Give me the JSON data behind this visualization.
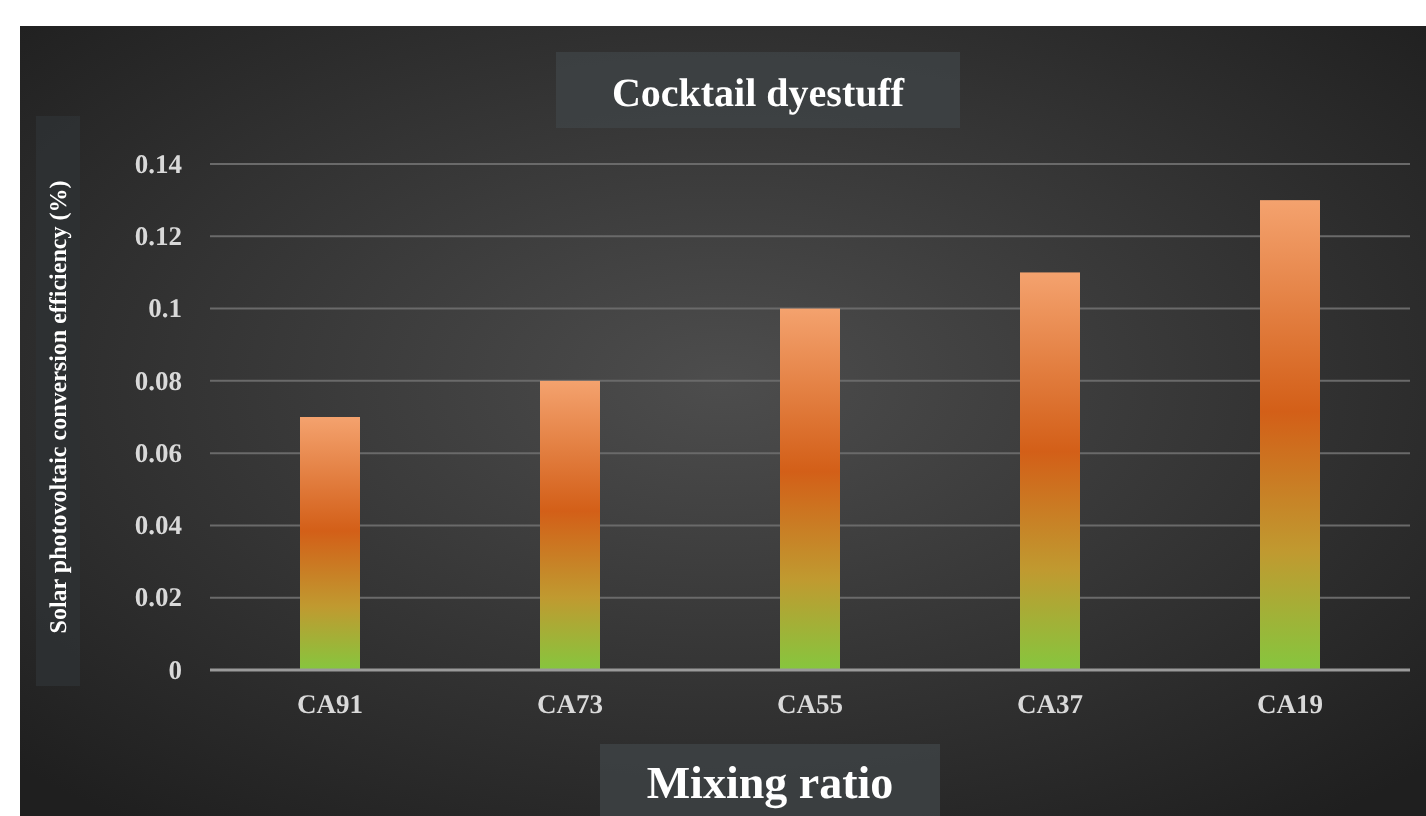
{
  "chart_data": {
    "type": "bar",
    "title": "Cocktail dyestuff",
    "xlabel": "Mixing ratio",
    "ylabel": "Solar photovoltaic conversion efficiency (%)",
    "categories": [
      "CA91",
      "CA73",
      "CA55",
      "CA37",
      "CA19"
    ],
    "values": [
      0.07,
      0.08,
      0.1,
      0.11,
      0.13
    ],
    "color": "#f4a26e",
    "ylim": [
      0,
      0.14
    ],
    "yticks": [
      0,
      {
        "value": 0.02,
        "label": "0.02"
      },
      {
        "value": 0.04,
        "label": "0.04"
      },
      {
        "value": 0.06,
        "label": "0.06"
      },
      {
        "value": 0.08,
        "label": "0.08"
      },
      {
        "value": 0.1,
        "label": "0.1"
      },
      {
        "value": 0.12,
        "label": "0.12"
      },
      {
        "value": 0.14,
        "label": "0.14"
      }
    ],
    "grid": "y"
  }
}
